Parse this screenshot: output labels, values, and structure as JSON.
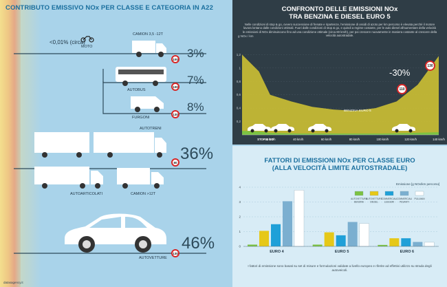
{
  "left": {
    "title": "CONTRIBUTO EMISSIVO NOx PER CLASSE E CATEGORIA IN A22",
    "rows": [
      {
        "label_top": "CAMION 3,5 -12t",
        "moto_label": "MOTO",
        "small_text": "<0,01% (circa)",
        "percent": "3%",
        "sign": "100"
      },
      {
        "label": "AUTOBUS",
        "percent": "7%",
        "sign": "100"
      },
      {
        "label": "FURGONI",
        "percent": "8%",
        "sign": "130"
      },
      {
        "label_top": "AUTOTRENI",
        "label_a": "AUTOARTICOLATI",
        "label_b": "CAMION >12t",
        "percent": "36%",
        "sign": "80"
      },
      {
        "label": "AUTOVETTURE",
        "percent": "46%",
        "sign": "130"
      }
    ],
    "credit": "datasagency.it"
  },
  "top_right": {
    "title_line1": "CONFRONTO DELLE EMISSIONI NOx",
    "title_line2": "TRA BENZINA E DIESEL EURO 5",
    "description": "Nelle condizioni di stop & go, ovvero successione di frenate e ripartenze, l'emissione di ossidi di azoto per km percorso è elevata perché il motore lavora lontano dalle condizioni ottimali. Fuori dalle condizioni di stop & go, e quindi a regime costante, per le auto diesel all'aumentare della velocità le emissioni di NOx diminuiscono fino ad una condizione ottimale (circa 80 km/h), per poi crescere nuovamente in maniera costante al crescere della velocità autostradale.",
    "reduction": "-30%",
    "sign_low": "110",
    "sign_high": "130"
  },
  "bottom_right": {
    "title_line1": "FATTORI DI EMISSIONI NOx PER CLASSE EURO",
    "title_line2": "(ALLA VELOCITÀ LIMITE AUTOSTRADALE)",
    "footnote": "I fattori di emissione sono basati su set di misure e formulazioni validate a livello europeo e riferite ad effettivi utilizzo su strada degli autoveicoli."
  },
  "chart_data": [
    {
      "type": "area",
      "title": "CONFRONTO DELLE EMISSIONI NOx TRA BENZINA E DIESEL EURO 5",
      "ylabel": "g NOx / km",
      "ylim": [
        0,
        1.4
      ],
      "yticks": [
        0,
        0.2,
        0.4,
        0.6,
        0.8,
        1,
        1.2
      ],
      "ytick_labels": [
        "",
        "0,2",
        "0,4",
        "0,6",
        "0,8",
        "1",
        "1,2"
      ],
      "x_tick_labels": [
        "STOP & GO",
        "20 km/h",
        "40 km/h",
        "60 km/h",
        "80 km/h",
        "100 km/h",
        "120 km/h",
        "140 km/h"
      ],
      "series": [
        {
          "name": "DIESEL EURO 5",
          "color": "#d6c832",
          "x": [
            0,
            12,
            20,
            35,
            50,
            65,
            80,
            95,
            110,
            125,
            140
          ],
          "y": [
            1.2,
            0.95,
            0.6,
            0.5,
            0.42,
            0.38,
            0.36,
            0.4,
            0.5,
            0.75,
            1.18
          ]
        },
        {
          "name": "BENZINA EURO 5",
          "color": "#7cc242",
          "x": [
            0,
            12,
            20,
            40,
            60,
            80,
            100,
            120,
            140
          ],
          "y": [
            0.06,
            0.05,
            0.03,
            0.02,
            0.02,
            0.02,
            0.02,
            0.03,
            0.04
          ]
        }
      ]
    },
    {
      "type": "bar",
      "title": "FATTORI DI EMISSIONI NOx PER CLASSE EURO (ALLA VELOCITÀ LIMITE AUTOSTRADALE)",
      "unit_label": "Emissione [g NOx/km percorso]",
      "ylim": [
        0,
        4
      ],
      "yticks": [
        0,
        1,
        2,
        3,
        4
      ],
      "ytick_labels": [
        "0",
        "1",
        "2",
        "3",
        "4"
      ],
      "categories": [
        "EURO 4",
        "EURO 5",
        "EURO 6"
      ],
      "series": [
        {
          "name": "AUTOVETTURE BENZINA",
          "color": "#7cc242",
          "values": [
            0.12,
            0.12,
            0.1
          ]
        },
        {
          "name": "AUTOVETTURE DIESEL",
          "color": "#e6c818",
          "values": [
            1.05,
            0.95,
            0.55
          ]
        },
        {
          "name": "COMMERCIALI LEGGERI",
          "color": "#1fa0d8",
          "values": [
            1.5,
            0.75,
            0.55
          ]
        },
        {
          "name": "COMMERCIALI PESANTI",
          "color": "#7bafd0",
          "values": [
            3.05,
            1.65,
            0.3
          ]
        },
        {
          "name": "PULLMAN",
          "color": "#ffffff",
          "values": [
            3.8,
            1.55,
            0.28
          ]
        }
      ]
    }
  ]
}
